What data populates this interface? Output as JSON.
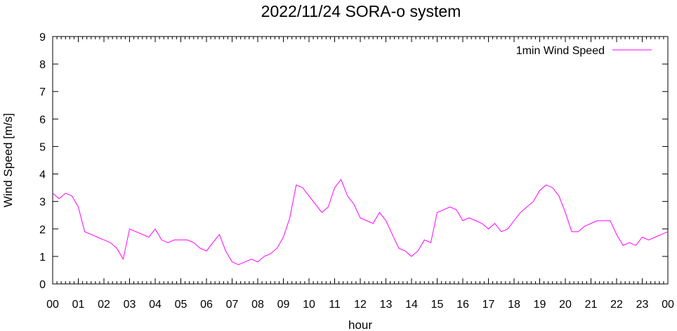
{
  "chart_data": {
    "type": "line",
    "title": "2022/11/24 SORA-o system",
    "xlabel": "hour",
    "ylabel": "Wind Speed [m/s]",
    "xlim": [
      0,
      24
    ],
    "ylim": [
      0,
      9
    ],
    "xticks": [
      "00",
      "01",
      "02",
      "03",
      "04",
      "05",
      "06",
      "07",
      "08",
      "09",
      "10",
      "11",
      "12",
      "13",
      "14",
      "15",
      "16",
      "17",
      "18",
      "19",
      "20",
      "21",
      "22",
      "23",
      "00"
    ],
    "yticks": [
      0,
      1,
      2,
      3,
      4,
      5,
      6,
      7,
      8,
      9
    ],
    "grid": false,
    "legend": "top-right",
    "series": [
      {
        "name": "1min Wind Speed",
        "color": "#ff00ff",
        "hour": [
          0,
          0.25,
          0.5,
          0.75,
          1,
          1.25,
          1.5,
          1.75,
          2,
          2.25,
          2.5,
          2.75,
          3,
          3.25,
          3.5,
          3.75,
          4,
          4.25,
          4.5,
          4.75,
          5,
          5.25,
          5.5,
          5.75,
          6,
          6.25,
          6.5,
          6.75,
          7,
          7.25,
          7.5,
          7.75,
          8,
          8.25,
          8.5,
          8.75,
          9,
          9.25,
          9.5,
          9.75,
          10,
          10.25,
          10.5,
          10.75,
          11,
          11.25,
          11.5,
          11.75,
          12,
          12.25,
          12.5,
          12.75,
          13,
          13.25,
          13.5,
          13.75,
          14,
          14.25,
          14.5,
          14.75,
          15,
          15.25,
          15.5,
          15.75,
          16,
          16.25,
          16.5,
          16.75,
          17,
          17.25,
          17.5,
          17.75,
          18,
          18.25,
          18.5,
          18.75,
          19,
          19.25,
          19.5,
          19.75,
          20,
          20.25,
          20.5,
          20.75,
          21,
          21.25,
          21.5,
          21.75,
          22,
          22.25,
          22.5,
          22.75,
          23,
          23.25,
          23.5,
          23.75,
          24
        ],
        "values": [
          3.3,
          3.1,
          3.3,
          3.2,
          2.8,
          1.9,
          1.8,
          1.7,
          1.6,
          1.5,
          1.3,
          0.9,
          2.0,
          1.9,
          1.8,
          1.7,
          2.0,
          1.6,
          1.5,
          1.6,
          1.6,
          1.6,
          1.5,
          1.3,
          1.2,
          1.5,
          1.8,
          1.2,
          0.8,
          0.7,
          0.8,
          0.9,
          0.8,
          1.0,
          1.1,
          1.3,
          1.7,
          2.4,
          3.6,
          3.5,
          3.2,
          2.9,
          2.6,
          2.8,
          3.5,
          3.8,
          3.2,
          2.9,
          2.4,
          2.3,
          2.2,
          2.6,
          2.3,
          1.8,
          1.3,
          1.2,
          1.0,
          1.2,
          1.6,
          1.5,
          2.6,
          2.7,
          2.8,
          2.7,
          2.3,
          2.4,
          2.3,
          2.2,
          2.0,
          2.2,
          1.9,
          2.0,
          2.3,
          2.6,
          2.8,
          3.0,
          3.4,
          3.6,
          3.5,
          3.2,
          2.6,
          1.9,
          1.9,
          2.1,
          2.2,
          2.3,
          2.3,
          2.3,
          1.8,
          1.4,
          1.5,
          1.4,
          1.7,
          1.6,
          1.7,
          1.8,
          1.9
        ]
      }
    ]
  }
}
